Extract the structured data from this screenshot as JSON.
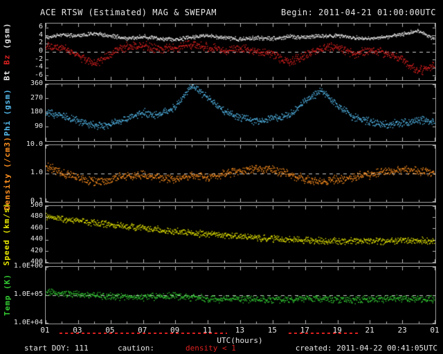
{
  "header": {
    "title": "ACE RTSW (Estimated) MAG & SWEPAM",
    "begin_label": "Begin: 2011-04-21 01:00:00UTC"
  },
  "footer": {
    "start_doy": "start DOY: 111",
    "caution_label": "caution:",
    "caution_value": "density < 1",
    "created": "created: 2011-04-22 00:41:05UTC"
  },
  "x_axis": {
    "label": "UTC(hours)",
    "range": [
      1,
      25
    ],
    "tick_hours": [
      1,
      3,
      5,
      7,
      9,
      11,
      13,
      15,
      17,
      19,
      21,
      23,
      25
    ],
    "tick_labels": [
      "01",
      "03",
      "05",
      "07",
      "09",
      "11",
      "13",
      "15",
      "17",
      "19",
      "21",
      "23",
      "01"
    ]
  },
  "colors": {
    "background": "#000000",
    "frame": "#999999",
    "tick_text": "#e8e8e8",
    "ref_line": "#cccccc",
    "bt": "#e8e8e8",
    "bz": "#dd2020",
    "phi": "#55bbee",
    "density": "#ff9020",
    "speed": "#e8e800",
    "temp": "#33cc33",
    "caution": "#dd2020"
  },
  "caution_marks": {
    "color": "#dd2020",
    "intervals": [
      [
        1.9,
        12.2
      ],
      [
        16.0,
        20.4
      ]
    ]
  },
  "plot": {
    "points_per_hour": 40,
    "dot_size": 1.4
  },
  "chart_data": [
    {
      "type": "scatter",
      "name": "bt-bz-panel",
      "scale": "linear",
      "ylim": [
        -7,
        7
      ],
      "ref_line": 0,
      "ylabel_parts": [
        {
          "text": "Bt ",
          "color": "#e8e8e8"
        },
        {
          "text": "Bz ",
          "color": "#dd2020"
        },
        {
          "text": "(gsm)",
          "color": "#e8e8e8"
        }
      ],
      "yticks": [
        {
          "v": 6,
          "label": "6"
        },
        {
          "v": 4,
          "label": "4"
        },
        {
          "v": 2,
          "label": "2"
        },
        {
          "v": 0,
          "label": "0"
        },
        {
          "v": -2,
          "label": "-2"
        },
        {
          "v": -4,
          "label": "-4"
        },
        {
          "v": -6,
          "label": "-6"
        }
      ],
      "series": [
        {
          "name": "Bt",
          "color": "#e8e8e8",
          "noise": 0.6,
          "values": [
            3.6,
            4.2,
            4.0,
            4.6,
            3.9,
            3.4,
            3.8,
            3.3,
            3.0,
            3.6,
            4.0,
            3.4,
            3.2,
            3.5,
            3.3,
            3.8,
            3.6,
            3.9,
            4.1,
            3.5,
            3.3,
            3.7,
            4.4,
            5.2,
            3.2
          ]
        },
        {
          "name": "Bz",
          "color": "#dd2020",
          "noise": 1.3,
          "values": [
            1.5,
            1.0,
            -1.0,
            -3.2,
            -0.5,
            1.2,
            1.5,
            0.5,
            1.0,
            1.8,
            1.2,
            0.3,
            0.8,
            0.2,
            -0.8,
            -2.5,
            -1.0,
            0.8,
            1.2,
            -0.8,
            0.3,
            -0.5,
            -2.0,
            -5.0,
            -3.5
          ]
        }
      ]
    },
    {
      "type": "scatter",
      "name": "phi-panel",
      "scale": "linear",
      "ylim": [
        0,
        360
      ],
      "ref_line": null,
      "ylabel_parts": [
        {
          "text": "Phi (gsm)",
          "color": "#55bbee"
        }
      ],
      "yticks": [
        {
          "v": 360,
          "label": "360"
        },
        {
          "v": 270,
          "label": "270"
        },
        {
          "v": 180,
          "label": "180"
        },
        {
          "v": 90,
          "label": "90"
        }
      ],
      "series": [
        {
          "name": "Phi",
          "color": "#55bbee",
          "noise": 30,
          "values": [
            180,
            160,
            120,
            95,
            100,
            140,
            180,
            160,
            220,
            350,
            280,
            190,
            150,
            120,
            140,
            160,
            250,
            320,
            230,
            150,
            120,
            100,
            110,
            130,
            125
          ]
        }
      ]
    },
    {
      "type": "scatter",
      "name": "density-panel",
      "scale": "log",
      "ylim": [
        0.1,
        10
      ],
      "ref_line": 1.0,
      "ylabel_parts": [
        {
          "text": "Density (/cm3)",
          "color": "#ff9020"
        }
      ],
      "yticks": [
        {
          "v": 10,
          "label": "10.0"
        },
        {
          "v": 1,
          "label": "1.0"
        },
        {
          "v": 0.1,
          "label": "0.1"
        }
      ],
      "series": [
        {
          "name": "Density",
          "color": "#ff9020",
          "noise": 0.18,
          "values": [
            1.8,
            1.0,
            0.7,
            0.5,
            0.6,
            0.8,
            0.9,
            0.7,
            0.6,
            0.8,
            0.7,
            0.9,
            1.2,
            1.5,
            1.3,
            0.9,
            0.6,
            0.5,
            0.6,
            0.7,
            0.9,
            1.2,
            1.4,
            1.2,
            1.0
          ]
        }
      ]
    },
    {
      "type": "scatter",
      "name": "speed-panel",
      "scale": "linear",
      "ylim": [
        400,
        500
      ],
      "ref_line": null,
      "ylabel_parts": [
        {
          "text": "Speed (km/s)",
          "color": "#e8e800"
        }
      ],
      "yticks": [
        {
          "v": 500,
          "label": "500"
        },
        {
          "v": 480,
          "label": "480"
        },
        {
          "v": 460,
          "label": "460"
        },
        {
          "v": 440,
          "label": "440"
        },
        {
          "v": 420,
          "label": "420"
        },
        {
          "v": 400,
          "label": "400"
        }
      ],
      "series": [
        {
          "name": "Speed",
          "color": "#e8e800",
          "noise": 7,
          "values": [
            482,
            478,
            474,
            470,
            467,
            464,
            461,
            458,
            455,
            452,
            450,
            448,
            446,
            444,
            442,
            440,
            439,
            438,
            437,
            438,
            438,
            437,
            438,
            439,
            437
          ]
        }
      ]
    },
    {
      "type": "scatter",
      "name": "temp-panel",
      "scale": "log",
      "ylim": [
        10000,
        1000000
      ],
      "ref_line": 100000,
      "ylabel_parts": [
        {
          "text": "Temp (K)",
          "color": "#33cc33"
        }
      ],
      "yticks": [
        {
          "v": 1000000,
          "label": "1.0E+06"
        },
        {
          "v": 100000,
          "label": "1.0E+05"
        },
        {
          "v": 10000,
          "label": "1.0E+04"
        }
      ],
      "series": [
        {
          "name": "Temp",
          "color": "#33cc33",
          "noise": 0.15,
          "values": [
            130000,
            115000,
            105000,
            95000,
            90000,
            85000,
            82000,
            88000,
            92000,
            80000,
            75000,
            70000,
            73000,
            68000,
            65000,
            70000,
            76000,
            72000,
            68000,
            66000,
            70000,
            73000,
            76000,
            71000,
            69000
          ]
        }
      ]
    }
  ]
}
